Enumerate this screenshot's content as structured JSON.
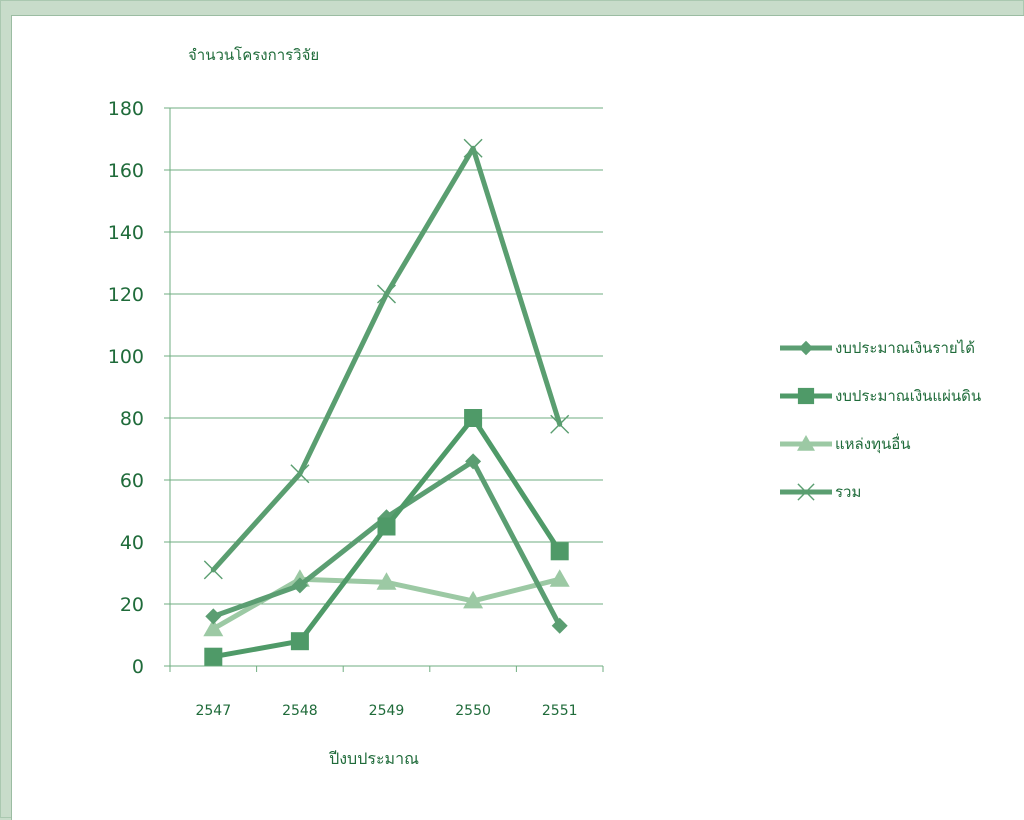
{
  "chart_data": {
    "type": "line",
    "title": "",
    "ylabel": "จำนวนโครงการวิจัย",
    "xlabel": "ปีงบประมาณ",
    "categories": [
      "2547",
      "2548",
      "2549",
      "2550",
      "2551"
    ],
    "ylim": [
      0,
      180
    ],
    "yticks": [
      0,
      20,
      40,
      60,
      80,
      100,
      120,
      140,
      160,
      180
    ],
    "grid": true,
    "legend_position": "right",
    "series": [
      {
        "name": "งบประมาณเงินรายได้",
        "values": [
          16,
          26,
          48,
          66,
          13
        ],
        "marker": "diamond",
        "color": "#5b9e72"
      },
      {
        "name": "งบประมาณเงินแผ่นดิน",
        "values": [
          3,
          8,
          45,
          80,
          37
        ],
        "marker": "square",
        "color": "#4f9a68"
      },
      {
        "name": "แหล่งทุนอื่น",
        "values": [
          12,
          28,
          27,
          21,
          28
        ],
        "marker": "triangle",
        "color": "#9cc9a4"
      },
      {
        "name": "รวม",
        "values": [
          31,
          62,
          120,
          167,
          78
        ],
        "marker": "x",
        "color": "#5a9e70"
      }
    ]
  }
}
